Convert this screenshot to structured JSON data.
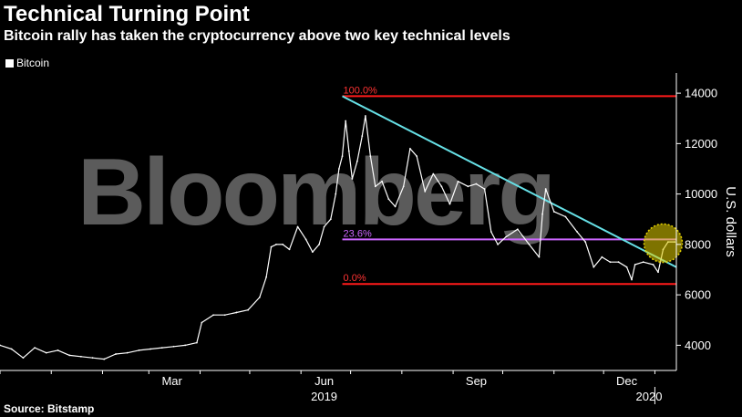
{
  "title": "Technical Turning Point",
  "subtitle": "Bitcoin rally has taken the cryptocurrency above two key technical levels",
  "source": "Source: Bitstamp",
  "watermark": "Bloomberg",
  "colors": {
    "price": "#ffffff",
    "fib_lines": "#ff1a1a",
    "fib_labels": "#ff3333",
    "fib_236": "#cc66ff",
    "trendline": "#66e0e6",
    "highlight": "#e6d200",
    "background": "#000000"
  },
  "chart_data": {
    "type": "line",
    "title": "Technical Turning Point",
    "subtitle": "Bitcoin rally has taken the cryptocurrency above two key technical levels",
    "ylabel": "U.S. dollars",
    "ylim": [
      3000,
      14800
    ],
    "xlim": [
      "2018-12-01",
      "2020-01-14"
    ],
    "yticks": [
      4000,
      6000,
      8000,
      10000,
      12000,
      14000
    ],
    "x_tick_labels": [
      "Mar",
      "Jun",
      "Sep",
      "Dec"
    ],
    "x_year_labels": [
      "2019",
      "2020"
    ],
    "grid": false,
    "legend_position": "top-left",
    "series": [
      {
        "name": "Bitcoin",
        "x": [
          "2018-12-01",
          "2018-12-08",
          "2018-12-15",
          "2018-12-22",
          "2018-12-29",
          "2019-01-05",
          "2019-01-12",
          "2019-01-19",
          "2019-01-26",
          "2019-02-02",
          "2019-02-09",
          "2019-02-16",
          "2019-02-23",
          "2019-03-02",
          "2019-03-09",
          "2019-03-16",
          "2019-03-23",
          "2019-03-30",
          "2019-04-02",
          "2019-04-09",
          "2019-04-16",
          "2019-04-23",
          "2019-04-30",
          "2019-05-07",
          "2019-05-11",
          "2019-05-14",
          "2019-05-17",
          "2019-05-21",
          "2019-05-25",
          "2019-05-30",
          "2019-06-04",
          "2019-06-08",
          "2019-06-12",
          "2019-06-15",
          "2019-06-19",
          "2019-06-22",
          "2019-06-24",
          "2019-06-26",
          "2019-06-28",
          "2019-06-30",
          "2019-07-02",
          "2019-07-05",
          "2019-07-08",
          "2019-07-10",
          "2019-07-13",
          "2019-07-16",
          "2019-07-20",
          "2019-07-24",
          "2019-07-28",
          "2019-08-02",
          "2019-08-06",
          "2019-08-10",
          "2019-08-15",
          "2019-08-20",
          "2019-08-25",
          "2019-08-30",
          "2019-09-04",
          "2019-09-10",
          "2019-09-15",
          "2019-09-20",
          "2019-09-24",
          "2019-09-28",
          "2019-10-03",
          "2019-10-10",
          "2019-10-17",
          "2019-10-23",
          "2019-10-25",
          "2019-10-27",
          "2019-11-01",
          "2019-11-08",
          "2019-11-15",
          "2019-11-20",
          "2019-11-25",
          "2019-11-30",
          "2019-12-05",
          "2019-12-10",
          "2019-12-15",
          "2019-12-18",
          "2019-12-20",
          "2019-12-25",
          "2019-12-31",
          "2020-01-03",
          "2020-01-06",
          "2020-01-09",
          "2020-01-13"
        ],
        "values": [
          4000,
          3850,
          3500,
          3900,
          3700,
          3800,
          3600,
          3550,
          3500,
          3450,
          3650,
          3700,
          3800,
          3850,
          3900,
          3950,
          4000,
          4100,
          4900,
          5200,
          5200,
          5300,
          5400,
          5900,
          6700,
          7900,
          8000,
          8000,
          7800,
          8700,
          8200,
          7700,
          8000,
          8700,
          9000,
          10000,
          11000,
          11500,
          12900,
          11700,
          10600,
          11300,
          12300,
          13100,
          11500,
          10300,
          10500,
          9800,
          9500,
          10300,
          11800,
          11500,
          10100,
          10800,
          10300,
          9600,
          10500,
          10300,
          10400,
          10200,
          8500,
          8000,
          8300,
          8600,
          8000,
          7500,
          9200,
          10200,
          9300,
          9100,
          8500,
          8100,
          7100,
          7500,
          7300,
          7300,
          7100,
          6600,
          7200,
          7300,
          7200,
          6900,
          7800,
          8100,
          8100
        ]
      }
    ],
    "reference_lines": [
      {
        "label": "100.0%",
        "value": 13880
      },
      {
        "label": "23.6%",
        "value": 8200
      },
      {
        "label": "0.0%",
        "value": 6430
      }
    ],
    "trendline": {
      "x": [
        "2019-06-26",
        "2020-01-14"
      ],
      "y": [
        13880,
        7100
      ]
    },
    "annotation": {
      "type": "circle",
      "x": "2020-01-06",
      "y": 8050
    }
  }
}
